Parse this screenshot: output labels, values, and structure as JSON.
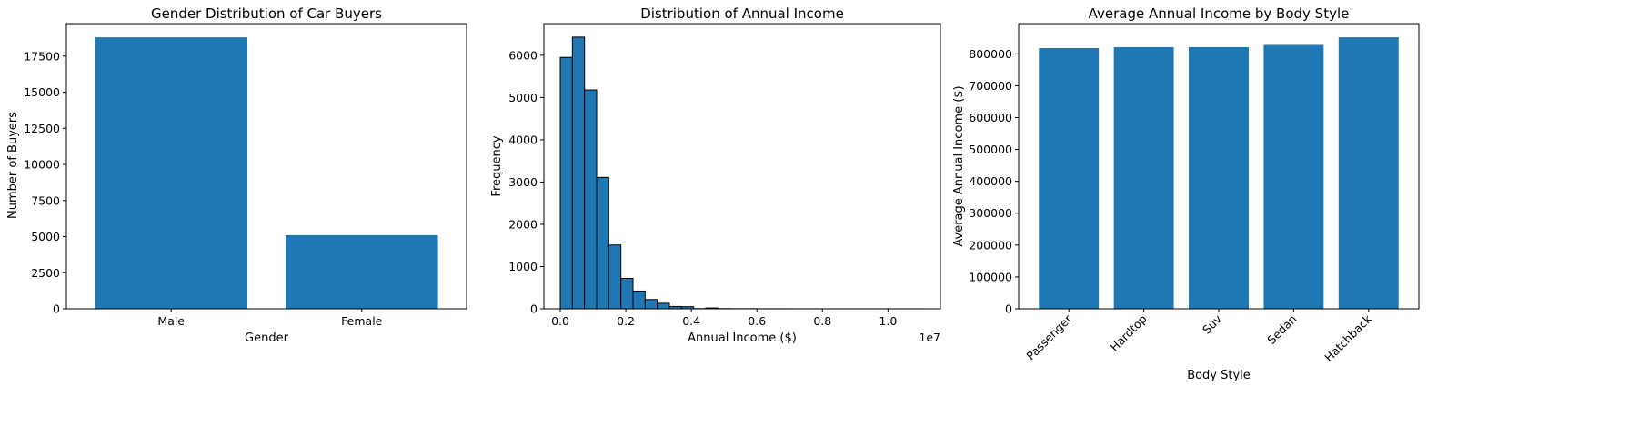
{
  "colors": {
    "bar": "#1f77b4",
    "edge": "#000000"
  },
  "chart_data": [
    {
      "type": "bar",
      "title": "Gender Distribution of Car Buyers",
      "xlabel": "Gender",
      "ylabel": "Number of Buyers",
      "categories": [
        "Male",
        "Female"
      ],
      "values": [
        18800,
        5100
      ],
      "ylim": [
        0,
        19750
      ],
      "yticks": [
        0,
        2500,
        5000,
        7500,
        10000,
        12500,
        15000,
        17500
      ],
      "grid": false
    },
    {
      "type": "bar",
      "subtype": "histogram",
      "title": "Distribution of Annual Income",
      "xlabel": "Annual Income ($)",
      "ylabel": "Frequency",
      "x_multiplier_label": "1e7",
      "bin_start": 0,
      "bin_width": 0.037,
      "values": [
        5950,
        6430,
        5180,
        3110,
        1510,
        720,
        420,
        220,
        130,
        55,
        50,
        5,
        20,
        5,
        3,
        3,
        2,
        2,
        2,
        1,
        1,
        1,
        1,
        1,
        1,
        1,
        1,
        1,
        1,
        1
      ],
      "xlim": [
        -0.05,
        1.16
      ],
      "xticks": [
        0.0,
        0.2,
        0.4,
        0.6,
        0.8,
        1.0
      ],
      "ylim": [
        0,
        6750
      ],
      "yticks": [
        0,
        1000,
        2000,
        3000,
        4000,
        5000,
        6000
      ],
      "grid": false
    },
    {
      "type": "bar",
      "title": "Average Annual Income by Body Style",
      "xlabel": "Body Style",
      "ylabel": "Average Annual Income ($)",
      "categories": [
        "Passenger",
        "Hardtop",
        "Suv",
        "Sedan",
        "Hatchback"
      ],
      "values": [
        818000,
        821000,
        821000,
        828000,
        852000
      ],
      "ylim": [
        0,
        895000
      ],
      "yticks": [
        0,
        100000,
        200000,
        300000,
        400000,
        500000,
        600000,
        700000,
        800000
      ],
      "xtick_rotation": 45,
      "grid": false
    }
  ]
}
